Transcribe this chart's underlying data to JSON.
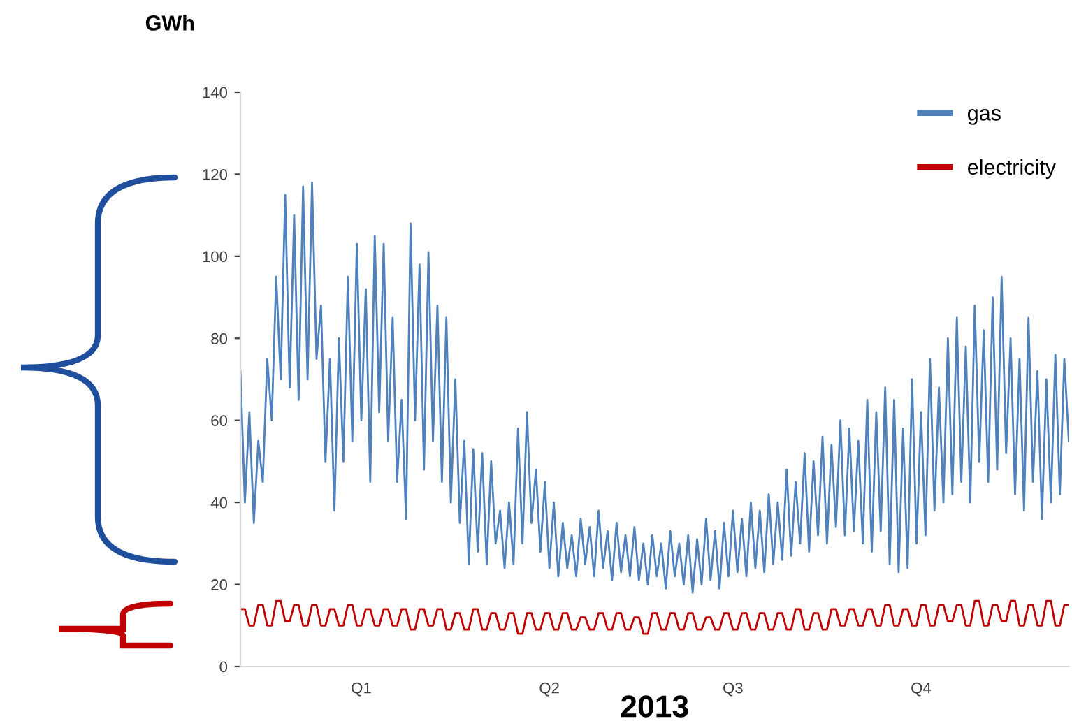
{
  "chart_data": {
    "type": "line",
    "ylabel": "GWh",
    "xlabel": "2013",
    "categories": [
      null,
      null,
      null,
      null,
      null,
      null,
      null,
      null,
      null,
      null,
      null,
      null,
      null,
      null,
      null,
      null,
      null,
      null,
      null,
      null,
      null,
      null,
      null,
      null,
      null,
      null,
      null,
      "Q1",
      null,
      null,
      null,
      null,
      null,
      null,
      null,
      null,
      null,
      null,
      null,
      null,
      null,
      null,
      null,
      null,
      null,
      null,
      null,
      null,
      null,
      null,
      null,
      null,
      null,
      null,
      null,
      null,
      null,
      null,
      null,
      null,
      null,
      null,
      null,
      null,
      null,
      null,
      null,
      null,
      null,
      "Q2",
      null,
      null,
      null,
      null,
      null,
      null,
      null,
      null,
      null,
      null,
      null,
      null,
      null,
      null,
      null,
      null,
      null,
      null,
      null,
      null,
      null,
      null,
      null,
      null,
      null,
      null,
      null,
      null,
      null,
      null,
      null,
      null,
      null,
      null,
      null,
      null,
      null,
      null,
      null,
      null,
      "Q3",
      null,
      null,
      null,
      null,
      null,
      null,
      null,
      null,
      null,
      null,
      null,
      null,
      null,
      null,
      null,
      null,
      null,
      null,
      null,
      null,
      null,
      null,
      null,
      null,
      null,
      null,
      null,
      null,
      null,
      null,
      null,
      null,
      null,
      null,
      null,
      null,
      null,
      null,
      null,
      null,
      null,
      "Q4",
      null,
      null,
      null,
      null,
      null,
      null,
      null,
      null,
      null,
      null,
      null,
      null,
      null,
      null,
      null,
      null,
      null,
      null,
      null,
      null,
      null,
      null,
      null,
      null,
      null,
      null,
      null,
      null,
      null,
      null,
      null,
      null,
      null
    ],
    "ylim": [
      0,
      140
    ],
    "yticks": [
      0,
      20,
      40,
      60,
      80,
      100,
      120,
      140
    ],
    "grid": false,
    "legend": "top right",
    "marker": "none",
    "line_style": "solid",
    "series": [
      {
        "name": "gas",
        "color": "#4f81bd",
        "values": [
          72,
          40,
          62,
          35,
          55,
          45,
          75,
          60,
          95,
          70,
          115,
          68,
          110,
          65,
          117,
          70,
          118,
          75,
          88,
          50,
          75,
          38,
          80,
          50,
          95,
          55,
          103,
          60,
          92,
          45,
          105,
          62,
          103,
          55,
          85,
          45,
          65,
          36,
          108,
          60,
          98,
          48,
          101,
          55,
          88,
          45,
          85,
          40,
          70,
          35,
          55,
          25,
          53,
          28,
          52,
          25,
          50,
          30,
          38,
          24,
          40,
          25,
          58,
          30,
          62,
          35,
          48,
          28,
          45,
          24,
          40,
          22,
          35,
          24,
          32,
          22,
          36,
          25,
          34,
          22,
          38,
          24,
          33,
          21,
          35,
          23,
          32,
          22,
          34,
          21,
          30,
          20,
          32,
          22,
          30,
          19,
          33,
          22,
          30,
          20,
          32,
          18,
          31,
          20,
          36,
          21,
          33,
          19,
          35,
          22,
          38,
          23,
          36,
          22,
          40,
          24,
          38,
          23,
          42,
          25,
          40,
          26,
          48,
          27,
          45,
          30,
          52,
          28,
          50,
          32,
          56,
          30,
          54,
          34,
          60,
          32,
          58,
          33,
          55,
          30,
          65,
          28,
          62,
          33,
          68,
          25,
          65,
          23,
          58,
          24,
          70,
          30,
          62,
          32,
          75,
          38,
          68,
          40,
          80,
          42,
          85,
          45,
          78,
          40,
          88,
          50,
          82,
          45,
          90,
          48,
          95,
          52,
          80,
          42,
          75,
          38,
          85,
          45,
          72,
          36,
          70,
          40,
          76,
          42,
          75,
          55
        ]
      },
      {
        "name": "electricity",
        "color": "#c00000",
        "values": [
          14,
          14,
          10,
          10,
          15,
          15,
          10,
          10,
          16,
          16,
          11,
          11,
          15,
          15,
          10,
          10,
          15,
          15,
          10,
          10,
          14,
          14,
          10,
          10,
          15,
          15,
          10,
          10,
          14,
          14,
          10,
          10,
          14,
          14,
          10,
          10,
          14,
          14,
          9,
          9,
          14,
          14,
          10,
          10,
          14,
          14,
          9,
          9,
          13,
          13,
          9,
          9,
          14,
          14,
          9,
          9,
          13,
          13,
          9,
          9,
          13,
          13,
          8,
          8,
          13,
          13,
          9,
          9,
          13,
          13,
          9,
          9,
          13,
          13,
          9,
          9,
          12,
          12,
          9,
          9,
          13,
          13,
          9,
          9,
          13,
          13,
          9,
          9,
          12,
          12,
          8,
          8,
          13,
          13,
          9,
          9,
          13,
          13,
          9,
          9,
          13,
          13,
          9,
          9,
          12,
          12,
          9,
          9,
          13,
          13,
          9,
          9,
          13,
          13,
          9,
          9,
          13,
          13,
          9,
          9,
          13,
          13,
          9,
          9,
          14,
          14,
          9,
          9,
          13,
          13,
          9,
          9,
          14,
          14,
          10,
          10,
          14,
          14,
          10,
          10,
          14,
          14,
          10,
          10,
          15,
          15,
          10,
          10,
          14,
          14,
          10,
          10,
          15,
          15,
          10,
          10,
          15,
          15,
          11,
          11,
          15,
          15,
          10,
          10,
          16,
          16,
          10,
          10,
          15,
          15,
          11,
          11,
          16,
          16,
          10,
          10,
          15,
          15,
          10,
          10,
          16,
          16,
          10,
          10,
          15,
          15
        ]
      }
    ]
  }
}
